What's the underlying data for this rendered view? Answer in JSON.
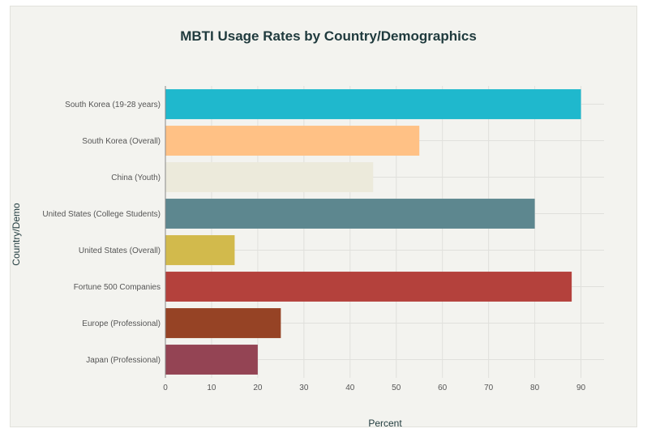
{
  "chart_data": {
    "type": "bar",
    "orientation": "horizontal",
    "title": "MBTI Usage Rates by Country/Demographics",
    "xlabel": "Percent",
    "ylabel": "Country/Demo",
    "xlim": [
      0,
      95
    ],
    "xticks": [
      0,
      10,
      20,
      30,
      40,
      50,
      60,
      70,
      80,
      90
    ],
    "grid": true,
    "categories": [
      "South Korea (19-28 years)",
      "South Korea (Overall)",
      "China (Youth)",
      "United States (College Students)",
      "United States (Overall)",
      "Fortune 500 Companies",
      "Europe (Professional)",
      "Japan (Professional)"
    ],
    "values": [
      90,
      55,
      45,
      80,
      15,
      88,
      25,
      20
    ],
    "colors": [
      "#1fb8cd",
      "#ffc185",
      "#eceadb",
      "#5d878f",
      "#d2ba4c",
      "#b4413c",
      "#964325",
      "#944454"
    ]
  }
}
